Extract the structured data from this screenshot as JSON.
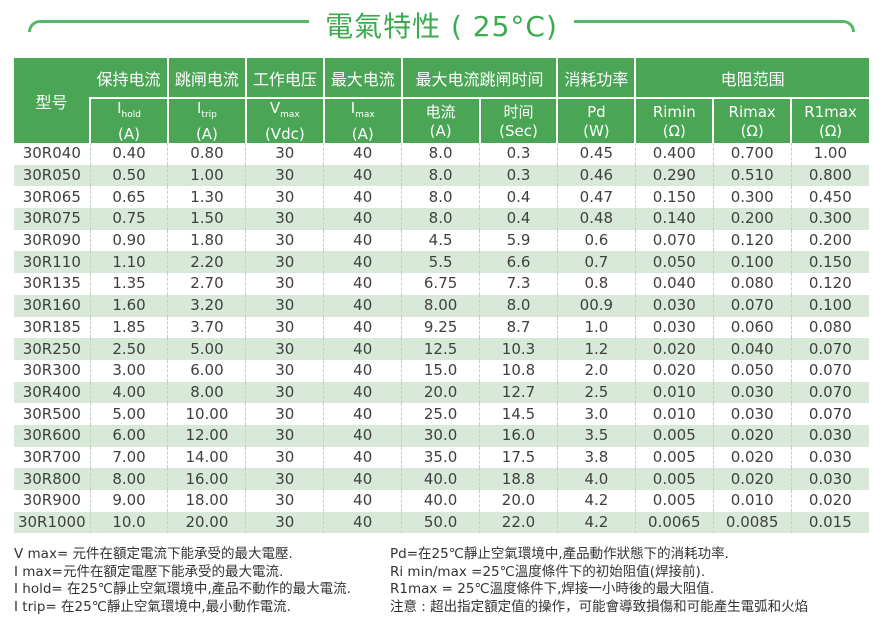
{
  "title": "電氣特性 ( 25°C)",
  "colors": {
    "header_green": "#4aa655",
    "title_green": "#3cab4e",
    "row_stripe_green": "#d9e9d9",
    "body_text": "#3f3f3f"
  },
  "table": {
    "model_header": "型号",
    "groups": [
      {
        "label": "保持电流"
      },
      {
        "label": "跳闸电流"
      },
      {
        "label": "工作电压"
      },
      {
        "label": "最大电流"
      },
      {
        "label": "最大电流跳闸时间"
      },
      {
        "label": "消耗功率"
      },
      {
        "label": "电阻范围"
      }
    ],
    "cols": [
      {
        "sym": "I",
        "sub": "hold",
        "unit": "(A)"
      },
      {
        "sym": "I",
        "sub": "trip",
        "unit": "(A)"
      },
      {
        "sym": "V",
        "sub": "max",
        "unit": "(Vdc)"
      },
      {
        "sym": "I",
        "sub": "max",
        "unit": "(A)"
      },
      {
        "sym": "电流",
        "unit": "(A)"
      },
      {
        "sym": "时间",
        "unit": "(Sec)"
      },
      {
        "sym": "Pd",
        "unit": "(W)"
      },
      {
        "sym": "Rimin",
        "unit": "(Ω)"
      },
      {
        "sym": "Rimax",
        "unit": "(Ω)"
      },
      {
        "sym": "R1max",
        "unit": "(Ω)"
      }
    ],
    "rows": [
      [
        "30R040",
        "0.40",
        "0.80",
        "30",
        "40",
        "8.0",
        "0.3",
        "0.45",
        "0.400",
        "0.700",
        "1.00"
      ],
      [
        "30R050",
        "0.50",
        "1.00",
        "30",
        "40",
        "8.0",
        "0.3",
        "0.46",
        "0.290",
        "0.510",
        "0.800"
      ],
      [
        "30R065",
        "0.65",
        "1.30",
        "30",
        "40",
        "8.0",
        "0.4",
        "0.47",
        "0.150",
        "0.300",
        "0.450"
      ],
      [
        "30R075",
        "0.75",
        "1.50",
        "30",
        "40",
        "8.0",
        "0.4",
        "0.48",
        "0.140",
        "0.200",
        "0.300"
      ],
      [
        "30R090",
        "0.90",
        "1.80",
        "30",
        "40",
        "4.5",
        "5.9",
        "0.6",
        "0.070",
        "0.120",
        "0.200"
      ],
      [
        "30R110",
        "1.10",
        "2.20",
        "30",
        "40",
        "5.5",
        "6.6",
        "0.7",
        "0.050",
        "0.100",
        "0.150"
      ],
      [
        "30R135",
        "1.35",
        "2.70",
        "30",
        "40",
        "6.75",
        "7.3",
        "0.8",
        "0.040",
        "0.080",
        "0.120"
      ],
      [
        "30R160",
        "1.60",
        "3.20",
        "30",
        "40",
        "8.00",
        "8.0",
        "00.9",
        "0.030",
        "0.070",
        "0.100"
      ],
      [
        "30R185",
        "1.85",
        "3.70",
        "30",
        "40",
        "9.25",
        "8.7",
        "1.0",
        "0.030",
        "0.060",
        "0.080"
      ],
      [
        "30R250",
        "2.50",
        "5.00",
        "30",
        "40",
        "12.5",
        "10.3",
        "1.2",
        "0.020",
        "0.040",
        "0.070"
      ],
      [
        "30R300",
        "3.00",
        "6.00",
        "30",
        "40",
        "15.0",
        "10.8",
        "2.0",
        "0.020",
        "0.050",
        "0.070"
      ],
      [
        "30R400",
        "4.00",
        "8.00",
        "30",
        "40",
        "20.0",
        "12.7",
        "2.5",
        "0.010",
        "0.030",
        "0.070"
      ],
      [
        "30R500",
        "5.00",
        "10.00",
        "30",
        "40",
        "25.0",
        "14.5",
        "3.0",
        "0.010",
        "0.030",
        "0.070"
      ],
      [
        "30R600",
        "6.00",
        "12.00",
        "30",
        "40",
        "30.0",
        "16.0",
        "3.5",
        "0.005",
        "0.020",
        "0.030"
      ],
      [
        "30R700",
        "7.00",
        "14.00",
        "30",
        "40",
        "35.0",
        "17.5",
        "3.8",
        "0.005",
        "0.020",
        "0.030"
      ],
      [
        "30R800",
        "8.00",
        "16.00",
        "30",
        "40",
        "40.0",
        "18.8",
        "4.0",
        "0.005",
        "0.020",
        "0.030"
      ],
      [
        "30R900",
        "9.00",
        "18.00",
        "30",
        "40",
        "40.0",
        "20.0",
        "4.2",
        "0.005",
        "0.010",
        "0.020"
      ],
      [
        "30R1000",
        "10.0",
        "20.00",
        "30",
        "40",
        "50.0",
        "22.0",
        "4.2",
        "0.0065",
        "0.0085",
        "0.015"
      ]
    ]
  },
  "notes_left": [
    "V max= 元件在額定電流下能承受的最大電壓.",
    "I max=元件在額定電壓下能承受的最大電流.",
    "I hold= 在25℃靜止空氣環境中,產品不動作的最大電流.",
    "I trip= 在25℃靜止空氣環境中,最小動作電流."
  ],
  "notes_right": [
    "Pd=在25℃靜止空氣環境中,產品動作狀態下的消耗功率.",
    "Ri min/max  =25℃溫度條件下的初始阻值(焊接前).",
    "R1max  = 25℃溫度條件下,焊接一小時後的最大阻值.",
    "注意 : 超出指定額定值的操作，可能會導致損傷和可能產生電弧和火焰"
  ]
}
